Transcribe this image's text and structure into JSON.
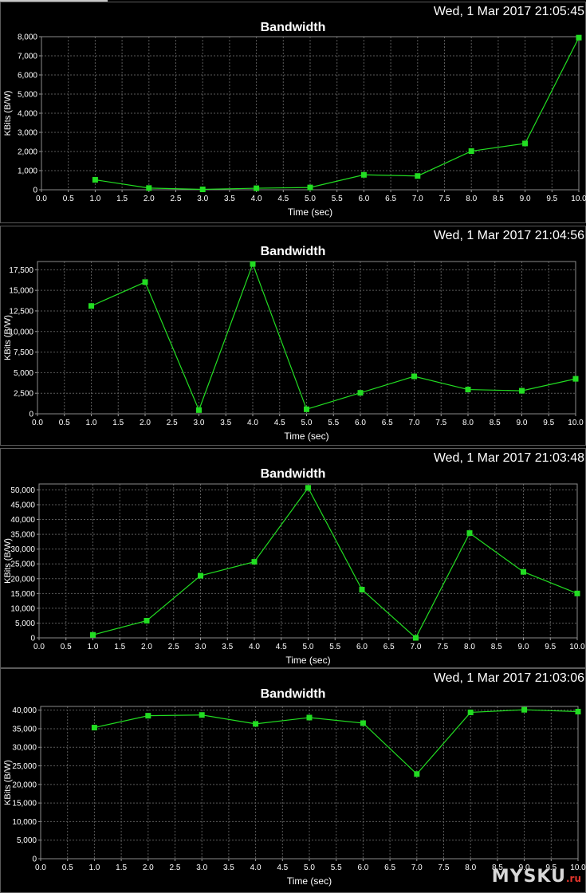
{
  "watermark": {
    "brand": "MYSKU",
    "suffix": ".ru"
  },
  "chart_data": [
    {
      "type": "line",
      "timestamp": "Wed, 1 Mar 2017 21:05:45",
      "title": "Bandwidth",
      "xlabel": "Time (sec)",
      "ylabel": "KBits (B/W)",
      "xlim": [
        0,
        10
      ],
      "ylim": [
        0,
        8000
      ],
      "xticks": [
        "0.0",
        "0.5",
        "1.0",
        "1.5",
        "2.0",
        "2.5",
        "3.0",
        "3.5",
        "4.0",
        "4.5",
        "5.0",
        "5.5",
        "6.0",
        "6.5",
        "7.0",
        "7.5",
        "8.0",
        "8.5",
        "9.0",
        "9.5",
        "10.0"
      ],
      "yticks": [
        0,
        1000,
        2000,
        3000,
        4000,
        5000,
        6000,
        7000,
        8000
      ],
      "yticklabels": [
        "0",
        "1,000",
        "2,000",
        "3,000",
        "4,000",
        "5,000",
        "6,000",
        "7,000",
        "8,000"
      ],
      "grid": true,
      "series": [
        {
          "color": "#22dd22",
          "x": [
            1,
            2,
            3,
            4,
            5,
            6,
            7,
            8,
            9,
            10
          ],
          "y": [
            520,
            90,
            20,
            80,
            120,
            780,
            720,
            2020,
            2420,
            7950
          ]
        }
      ]
    },
    {
      "type": "line",
      "timestamp": "Wed, 1 Mar 2017 21:04:56",
      "title": "Bandwidth",
      "xlabel": "Time (sec)",
      "ylabel": "KBits (B/W)",
      "xlim": [
        0,
        10
      ],
      "ylim": [
        0,
        18500
      ],
      "xticks": [
        "0.0",
        "0.5",
        "1.0",
        "1.5",
        "2.0",
        "2.5",
        "3.0",
        "3.5",
        "4.0",
        "4.5",
        "5.0",
        "5.5",
        "6.0",
        "6.5",
        "7.0",
        "7.5",
        "8.0",
        "8.5",
        "9.0",
        "9.5",
        "10.0"
      ],
      "yticks": [
        0,
        2500,
        5000,
        7500,
        10000,
        12500,
        15000,
        17500
      ],
      "yticklabels": [
        "0",
        "2,500",
        "5,000",
        "7,500",
        "10,000",
        "12,500",
        "15,000",
        "17,500"
      ],
      "grid": true,
      "series": [
        {
          "color": "#22dd22",
          "x": [
            1,
            2,
            3,
            4,
            5,
            6,
            7,
            8,
            9,
            10
          ],
          "y": [
            13100,
            16000,
            450,
            18200,
            550,
            2550,
            4550,
            2950,
            2800,
            4250
          ]
        }
      ]
    },
    {
      "type": "line",
      "timestamp": "Wed, 1 Mar 2017 21:03:48",
      "title": "Bandwidth",
      "xlabel": "Time (sec)",
      "ylabel": "KBits (B/W)",
      "xlim": [
        0,
        10
      ],
      "ylim": [
        0,
        52000
      ],
      "xticks": [
        "0.0",
        "0.5",
        "1.0",
        "1.5",
        "2.0",
        "2.5",
        "3.0",
        "3.5",
        "4.0",
        "4.5",
        "5.0",
        "5.5",
        "6.0",
        "6.5",
        "7.0",
        "7.5",
        "8.0",
        "8.5",
        "9.0",
        "9.5",
        "10.0"
      ],
      "yticks": [
        0,
        5000,
        10000,
        15000,
        20000,
        25000,
        30000,
        35000,
        40000,
        45000,
        50000
      ],
      "yticklabels": [
        "0",
        "5,000",
        "10,000",
        "15,000",
        "20,000",
        "25,000",
        "30,000",
        "35,000",
        "40,000",
        "45,000",
        "50,000"
      ],
      "grid": true,
      "series": [
        {
          "color": "#22dd22",
          "x": [
            1,
            2,
            3,
            4,
            5,
            6,
            7,
            8,
            9,
            10
          ],
          "y": [
            1000,
            5800,
            21000,
            25700,
            50700,
            16300,
            0,
            35400,
            22300,
            15000
          ]
        }
      ]
    },
    {
      "type": "line",
      "timestamp": "Wed, 1 Mar 2017 21:03:06",
      "title": "Bandwidth",
      "xlabel": "Time (sec)",
      "ylabel": "KBits (B/W)",
      "xlim": [
        0,
        10
      ],
      "ylim": [
        0,
        41000
      ],
      "xticks": [
        "0.0",
        "0.5",
        "1.0",
        "1.5",
        "2.0",
        "2.5",
        "3.0",
        "3.5",
        "4.0",
        "4.5",
        "5.0",
        "5.5",
        "6.0",
        "6.5",
        "7.0",
        "7.5",
        "8.0",
        "8.5",
        "9.0",
        "9.5",
        "10.0"
      ],
      "yticks": [
        0,
        5000,
        10000,
        15000,
        20000,
        25000,
        30000,
        35000,
        40000
      ],
      "yticklabels": [
        "0",
        "5,000",
        "10,000",
        "15,000",
        "20,000",
        "25,000",
        "30,000",
        "35,000",
        "40,000"
      ],
      "grid": true,
      "series": [
        {
          "color": "#22dd22",
          "x": [
            1,
            2,
            3,
            4,
            5,
            6,
            7,
            8,
            9,
            10
          ],
          "y": [
            35300,
            38500,
            38700,
            36300,
            38000,
            36500,
            22800,
            39400,
            40100,
            39600
          ]
        }
      ]
    }
  ]
}
